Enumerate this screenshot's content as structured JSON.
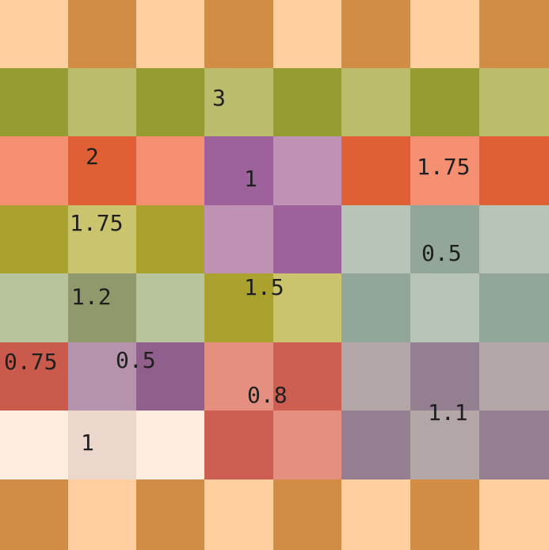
{
  "board": {
    "rows": 8,
    "cols": 8,
    "colors": [
      [
        "#ffcf9f",
        "#d18c45",
        "#ffcf9f",
        "#d18c45",
        "#ffcf9f",
        "#d18c45",
        "#ffcf9f",
        "#d18c45"
      ],
      [
        "#969c31",
        "#b9bd6c",
        "#969c31",
        "#b9bd6c",
        "#969c31",
        "#b9bd6c",
        "#969c31",
        "#b9bd6c"
      ],
      [
        "#f48f72",
        "#e05f34",
        "#f48f72",
        "#9d629c",
        "#bf92b3",
        "#e05f34",
        "#f48f72",
        "#e05f34"
      ],
      [
        "#aaa12e",
        "#c9c46d",
        "#aaa12e",
        "#bf92b3",
        "#9d629c",
        "#b7c4b7",
        "#93a69a",
        "#b7c4b7"
      ],
      [
        "#b8c49b",
        "#90996c",
        "#b8c49b",
        "#aaa12e",
        "#c9c46d",
        "#93a69a",
        "#b7c4b7",
        "#93a69a"
      ],
      [
        "#c95a4c",
        "#b693ac",
        "#915f8c",
        "#e58f80",
        "#cd5f52",
        "#b3a6a7",
        "#937f8f",
        "#b3a6a7"
      ],
      [
        "#ffeee0",
        "#ecd7cd",
        "#ffeee0",
        "#cd5f52",
        "#e58f80",
        "#937f8f",
        "#b3a6a7",
        "#937f8f"
      ],
      [
        "#d18c45",
        "#ffcf9f",
        "#d18c45",
        "#ffcf9f",
        "#d18c45",
        "#ffcf9f",
        "#d18c45",
        "#ffcf9f"
      ]
    ]
  },
  "labels": [
    {
      "text": "3",
      "row": 1,
      "col": 3
    },
    {
      "text": "2",
      "row": 2,
      "col": 1
    },
    {
      "text": "1",
      "row": 2,
      "col": 3
    },
    {
      "text": "1.75",
      "row": 2,
      "col": 6
    },
    {
      "text": "1.75",
      "row": 3,
      "col": 1
    },
    {
      "text": "0.5",
      "row": 3,
      "col": 6
    },
    {
      "text": "1.2",
      "row": 4,
      "col": 1
    },
    {
      "text": "1.5",
      "row": 4,
      "col": 3
    },
    {
      "text": "0.75",
      "row": 5,
      "col": 0
    },
    {
      "text": "0.5",
      "row": 5,
      "col": 1
    },
    {
      "text": "0.8",
      "row": 5,
      "col": 3
    },
    {
      "text": "1.1",
      "row": 5,
      "col": 6
    },
    {
      "text": "1",
      "row": 6,
      "col": 1
    }
  ]
}
